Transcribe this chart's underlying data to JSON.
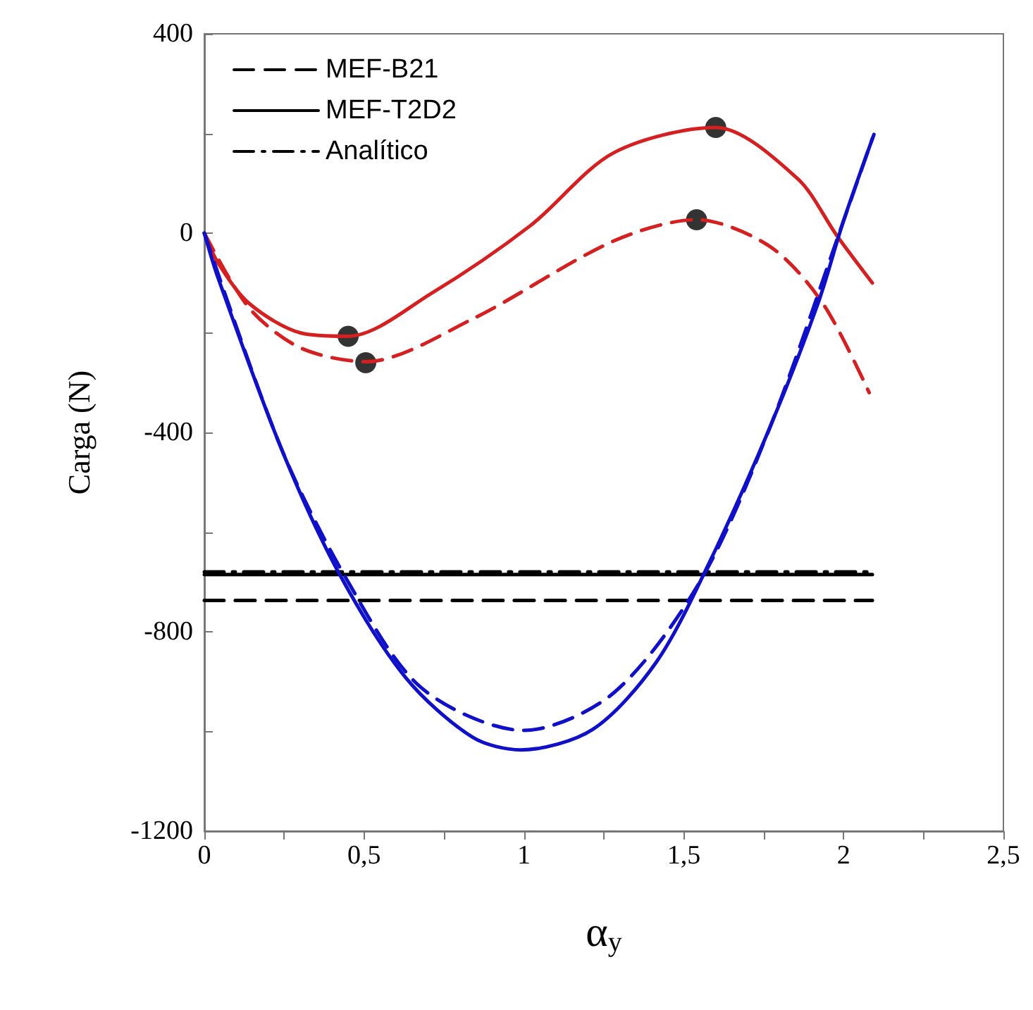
{
  "chart_data": {
    "type": "line",
    "xlabel": "α$_{y}$",
    "ylabel": "Carga (N)",
    "xlim": [
      0,
      2.5
    ],
    "ylim": [
      -1200,
      400
    ],
    "xticks": [
      0,
      {
        "value": 0.25,
        "label": null
      },
      {
        "value": 0.5,
        "label": "0,5"
      },
      {
        "value": 0.75,
        "label": null
      },
      1,
      {
        "value": 1.25,
        "label": null
      },
      {
        "value": 1.5,
        "label": "1,5"
      },
      {
        "value": 1.75,
        "label": null
      },
      2,
      {
        "value": 2.25,
        "label": null
      },
      {
        "value": 2.5,
        "label": "2,5"
      }
    ],
    "yticks": [
      400,
      {
        "value": 200,
        "label": null
      },
      0,
      {
        "value": -200,
        "label": null
      },
      -400,
      {
        "value": -600,
        "label": null
      },
      -800,
      {
        "value": -1000,
        "label": null
      },
      -1200
    ],
    "grid": false,
    "legend": "top left",
    "marker": "none",
    "series": [
      {
        "name": "MEF-B21",
        "color": "#000000",
        "line_style": "dashed",
        "x": [
          0,
          2.09
        ],
        "values": [
          -737,
          -737
        ]
      },
      {
        "name": "MEF-T2D2",
        "color": "#000000",
        "line_style": "solid",
        "x": [
          0,
          2.09
        ],
        "values": [
          -685,
          -685
        ]
      },
      {
        "name": "Analítico",
        "color": "#000000",
        "line_style": "dashdot",
        "x": [
          0,
          2.09
        ],
        "values": [
          -680,
          -680
        ]
      },
      {
        "color": "#d42020",
        "line_style": "solid",
        "x": [
          0,
          0.043,
          0.14,
          0.3,
          0.45,
          0.71,
          1.02,
          1.28,
          1.6,
          1.855,
          1.98,
          2.09
        ],
        "values": [
          0,
          -60,
          -141,
          -200,
          -207,
          -121,
          15,
          161,
          212,
          110,
          -6,
          -100
        ]
      },
      {
        "color": "#d42020",
        "line_style": "dashed",
        "x": [
          0,
          0.14,
          0.3,
          0.505,
          0.84,
          1.28,
          1.54,
          1.77,
          1.935,
          2.08
        ],
        "values": [
          0,
          -150,
          -230,
          -258,
          -172,
          -16,
          27,
          -27,
          -141,
          -320
        ]
      },
      {
        "color": "#1010c8",
        "line_style": "solid",
        "x": [
          0,
          0.043,
          0.24,
          0.42,
          0.63,
          0.84,
          0.99,
          1.215,
          1.415,
          1.58,
          1.77,
          1.92,
          2.0,
          2.095
        ],
        "values": [
          0,
          -90,
          -431,
          -681,
          -892,
          -1012,
          -1037,
          -996,
          -860,
          -661,
          -389,
          -141,
          25,
          198
        ]
      },
      {
        "color": "#1010c8",
        "line_style": "dashed",
        "x": [
          0,
          0.24,
          0.45,
          0.68,
          1,
          1.28,
          1.55,
          1.77,
          2,
          2.09
        ],
        "values": [
          0,
          -431,
          -700,
          -913,
          -998,
          -923,
          -700,
          -389,
          25,
          190
        ]
      },
      {
        "type": "scatter",
        "color": "#000000",
        "marker": "circle",
        "x": [
          0.45,
          0.505,
          1.54,
          1.6
        ],
        "values": [
          -207,
          -260,
          27,
          212
        ]
      }
    ]
  }
}
